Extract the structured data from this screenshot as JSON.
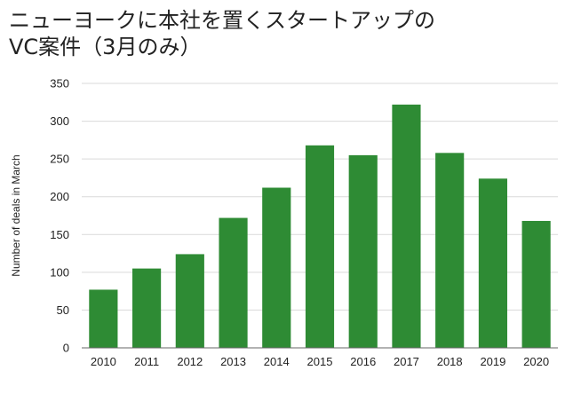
{
  "chart_data": {
    "type": "bar",
    "title_lines": [
      "ニューヨークに本社を置くスタートアップの",
      "VC案件（3月のみ）"
    ],
    "xlabel": "",
    "ylabel": "Number of deals in March",
    "categories": [
      "2010",
      "2011",
      "2012",
      "2013",
      "2014",
      "2015",
      "2016",
      "2017",
      "2018",
      "2019",
      "2020"
    ],
    "values": [
      77,
      105,
      124,
      172,
      212,
      268,
      255,
      322,
      258,
      224,
      168
    ],
    "ylim": [
      0,
      350
    ],
    "yticks": [
      "0",
      "50",
      "100",
      "150",
      "200",
      "250",
      "300",
      "350"
    ],
    "grid": true,
    "legend": "none",
    "colors": {
      "bar": "#2e8b34",
      "grid": "#d9d9d9",
      "axis": "#666666"
    }
  }
}
